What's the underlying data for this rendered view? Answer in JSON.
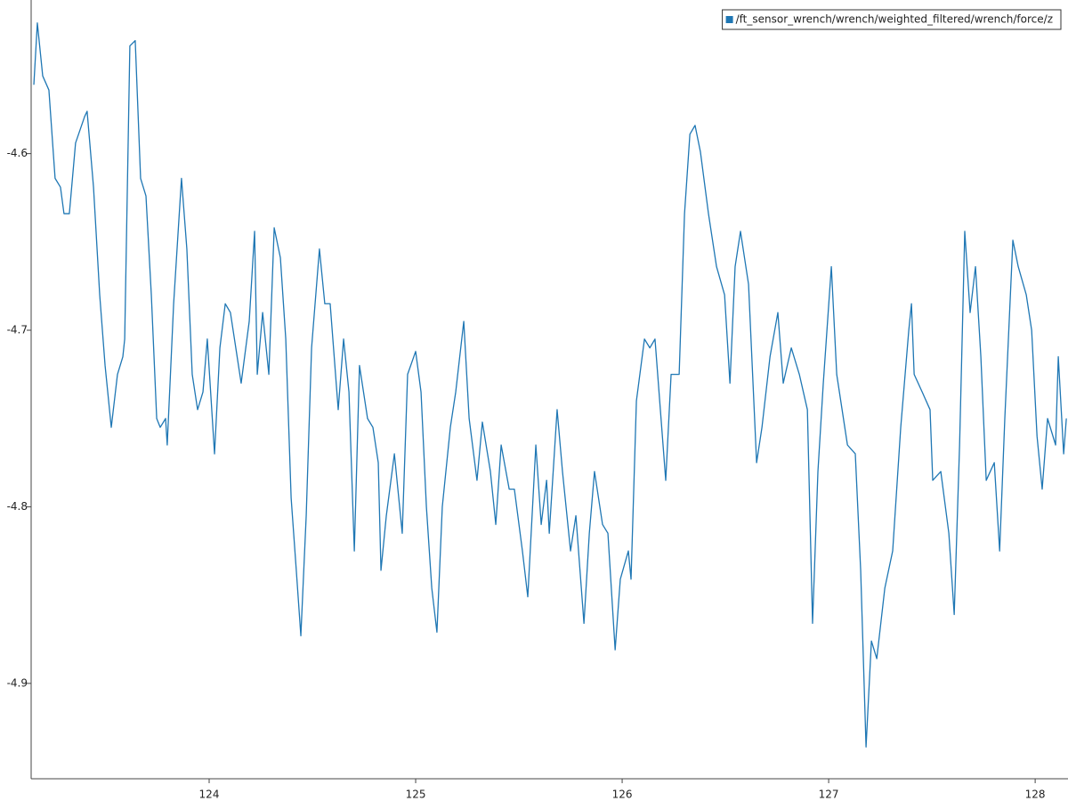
{
  "chart_data": {
    "type": "line",
    "x": [
      123.151,
      123.168,
      123.194,
      123.224,
      123.254,
      123.28,
      123.297,
      123.323,
      123.353,
      123.397,
      123.409,
      123.44,
      123.47,
      123.496,
      123.526,
      123.556,
      123.582,
      123.591,
      123.616,
      123.642,
      123.668,
      123.694,
      123.72,
      123.746,
      123.763,
      123.789,
      123.797,
      123.828,
      123.866,
      123.892,
      123.918,
      123.944,
      123.97,
      123.991,
      124.026,
      124.052,
      124.078,
      124.103,
      124.129,
      124.155,
      124.194,
      124.22,
      124.233,
      124.259,
      124.289,
      124.315,
      124.345,
      124.371,
      124.397,
      124.422,
      124.444,
      124.47,
      124.496,
      124.534,
      124.56,
      124.586,
      124.625,
      124.651,
      124.677,
      124.703,
      124.728,
      124.767,
      124.793,
      124.819,
      124.832,
      124.858,
      124.897,
      124.935,
      124.961,
      125.0,
      125.026,
      125.052,
      125.078,
      125.103,
      125.129,
      125.168,
      125.194,
      125.233,
      125.259,
      125.297,
      125.323,
      125.362,
      125.388,
      125.414,
      125.453,
      125.478,
      125.517,
      125.543,
      125.582,
      125.608,
      125.634,
      125.647,
      125.685,
      125.711,
      125.75,
      125.776,
      125.815,
      125.841,
      125.866,
      125.905,
      125.931,
      125.966,
      125.991,
      126.03,
      126.043,
      126.069,
      126.108,
      126.134,
      126.159,
      126.185,
      126.211,
      126.237,
      126.276,
      126.302,
      126.328,
      126.353,
      126.379,
      126.418,
      126.457,
      126.496,
      126.522,
      126.547,
      126.573,
      126.612,
      126.651,
      126.677,
      126.716,
      126.754,
      126.78,
      126.819,
      126.858,
      126.897,
      126.922,
      126.948,
      126.974,
      127.013,
      127.039,
      127.091,
      127.129,
      127.155,
      127.181,
      127.207,
      127.233,
      127.272,
      127.31,
      127.349,
      127.388,
      127.401,
      127.414,
      127.453,
      127.491,
      127.504,
      127.543,
      127.582,
      127.608,
      127.634,
      127.659,
      127.685,
      127.711,
      127.737,
      127.763,
      127.802,
      127.828,
      127.853,
      127.892,
      127.918,
      127.957,
      127.983,
      128.009,
      128.034,
      128.06,
      128.099,
      128.112,
      128.138,
      128.151
    ],
    "series": [
      {
        "name": "/ft_sensor_wrench/wrench/weighted_filtered/wrench/force/z",
        "color": "#1f77b4",
        "values": [
          -4.561,
          -4.526,
          -4.556,
          -4.564,
          -4.614,
          -4.619,
          -4.634,
          -4.634,
          -4.594,
          -4.579,
          -4.576,
          -4.619,
          -4.68,
          -4.72,
          -4.755,
          -4.725,
          -4.715,
          -4.705,
          -4.539,
          -4.536,
          -4.614,
          -4.624,
          -4.68,
          -4.75,
          -4.755,
          -4.75,
          -4.765,
          -4.685,
          -4.614,
          -4.654,
          -4.725,
          -4.745,
          -4.735,
          -4.705,
          -4.77,
          -4.71,
          -4.685,
          -4.69,
          -4.71,
          -4.73,
          -4.695,
          -4.644,
          -4.725,
          -4.69,
          -4.725,
          -4.642,
          -4.659,
          -4.705,
          -4.795,
          -4.836,
          -4.873,
          -4.805,
          -4.71,
          -4.654,
          -4.685,
          -4.685,
          -4.745,
          -4.705,
          -4.735,
          -4.825,
          -4.72,
          -4.75,
          -4.755,
          -4.775,
          -4.836,
          -4.805,
          -4.77,
          -4.815,
          -4.725,
          -4.712,
          -4.735,
          -4.8,
          -4.846,
          -4.871,
          -4.8,
          -4.755,
          -4.735,
          -4.695,
          -4.75,
          -4.785,
          -4.752,
          -4.78,
          -4.81,
          -4.765,
          -4.79,
          -4.79,
          -4.825,
          -4.851,
          -4.765,
          -4.81,
          -4.785,
          -4.815,
          -4.745,
          -4.78,
          -4.825,
          -4.805,
          -4.866,
          -4.815,
          -4.78,
          -4.81,
          -4.815,
          -4.881,
          -4.841,
          -4.825,
          -4.841,
          -4.74,
          -4.705,
          -4.71,
          -4.705,
          -4.745,
          -4.785,
          -4.725,
          -4.725,
          -4.634,
          -4.589,
          -4.584,
          -4.599,
          -4.634,
          -4.664,
          -4.68,
          -4.73,
          -4.664,
          -4.644,
          -4.674,
          -4.775,
          -4.755,
          -4.715,
          -4.69,
          -4.73,
          -4.71,
          -4.725,
          -4.745,
          -4.866,
          -4.78,
          -4.73,
          -4.664,
          -4.725,
          -4.765,
          -4.77,
          -4.836,
          -4.936,
          -4.876,
          -4.886,
          -4.846,
          -4.825,
          -4.755,
          -4.7,
          -4.685,
          -4.725,
          -4.735,
          -4.745,
          -4.785,
          -4.78,
          -4.815,
          -4.861,
          -4.765,
          -4.644,
          -4.69,
          -4.664,
          -4.715,
          -4.785,
          -4.775,
          -4.825,
          -4.75,
          -4.649,
          -4.664,
          -4.68,
          -4.7,
          -4.76,
          -4.79,
          -4.75,
          -4.765,
          -4.715,
          -4.77,
          -4.75
        ]
      }
    ],
    "xlim": [
      123.138,
      128.159
    ],
    "ylim": [
      -4.954,
      -4.513
    ],
    "xticks": [
      124,
      125,
      126,
      127,
      128
    ],
    "yticks": [
      -4.6,
      -4.7,
      -4.8,
      -4.9
    ],
    "grid": false,
    "legend": "upper right"
  }
}
